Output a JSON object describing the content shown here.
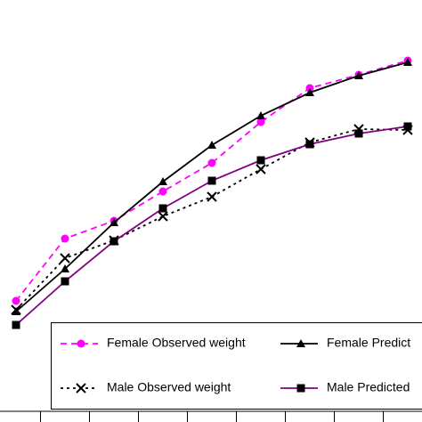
{
  "chart_data": {
    "type": "line",
    "categories": [
      null,
      null,
      null,
      null,
      null,
      null,
      null,
      null,
      null
    ],
    "ylim": [
      0,
      474
    ],
    "series": [
      {
        "name": "Female Observed weight",
        "color": "#ff00ff",
        "line": "dashed",
        "marker": "circle",
        "values": [
          136,
          206,
          226,
          259,
          291,
          337,
          375,
          390,
          406
        ]
      },
      {
        "name": "Female Predict",
        "color": "#000000",
        "line": "solid",
        "marker": "triangle",
        "values": [
          124,
          172,
          224,
          270,
          311,
          344,
          370,
          389,
          404
        ]
      },
      {
        "name": "Male Observed weight",
        "color": "#000000",
        "line": "dotted",
        "marker": "x",
        "values": [
          126,
          184,
          204,
          231,
          253,
          284,
          314,
          329,
          328
        ]
      },
      {
        "name": "Male Predicted",
        "color": "#800080",
        "line": "solid",
        "marker": "square",
        "values": [
          109,
          158,
          203,
          240,
          271,
          294,
          312,
          324,
          332
        ]
      }
    ],
    "legend": "bottom"
  }
}
